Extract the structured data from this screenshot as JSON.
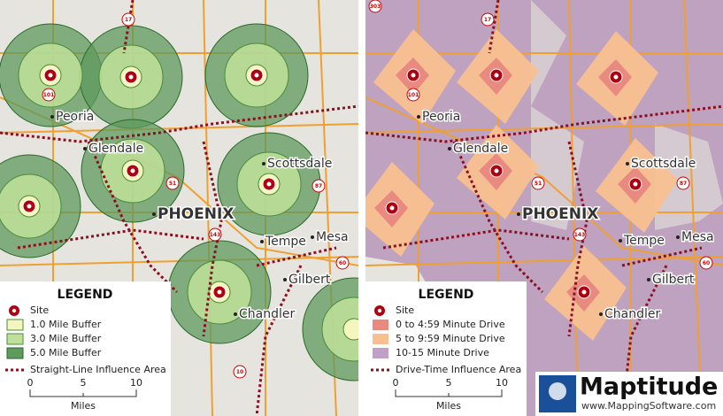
{
  "left_map": {
    "cities": [
      "Peoria",
      "Glendale",
      "PHOENIX",
      "Scottsdale",
      "Tempe",
      "Mesa",
      "Gilbert",
      "Chandler"
    ],
    "shields": [
      "17",
      "101",
      "51",
      "87",
      "143",
      "10",
      "60"
    ],
    "legend": {
      "title": "LEGEND",
      "items": [
        "Site",
        "1.0 Mile Buffer",
        "3.0 Mile Buffer",
        "5.0 Mile Buffer",
        "Straight-Line Influence Area"
      ],
      "scale": {
        "ticks": [
          "0",
          "5",
          "10"
        ],
        "unit": "Miles"
      }
    }
  },
  "right_map": {
    "cities": [
      "Peoria",
      "Glendale",
      "PHOENIX",
      "Scottsdale",
      "Tempe",
      "Mesa",
      "Gilbert",
      "Chandler"
    ],
    "shields": [
      "303",
      "17",
      "101",
      "51",
      "87",
      "143",
      "60"
    ],
    "legend": {
      "title": "LEGEND",
      "items": [
        "Site",
        "0 to 4:59 Minute Drive",
        "5 to 9:59 Minute Drive",
        "10-15 Minute Drive",
        "Drive-Time Influence Area"
      ],
      "scale": {
        "ticks": [
          "0",
          "5",
          "10"
        ],
        "unit": "Miles"
      }
    }
  },
  "logo": {
    "name": "Maptitude",
    "url": "www.MappingSoftware.com"
  }
}
